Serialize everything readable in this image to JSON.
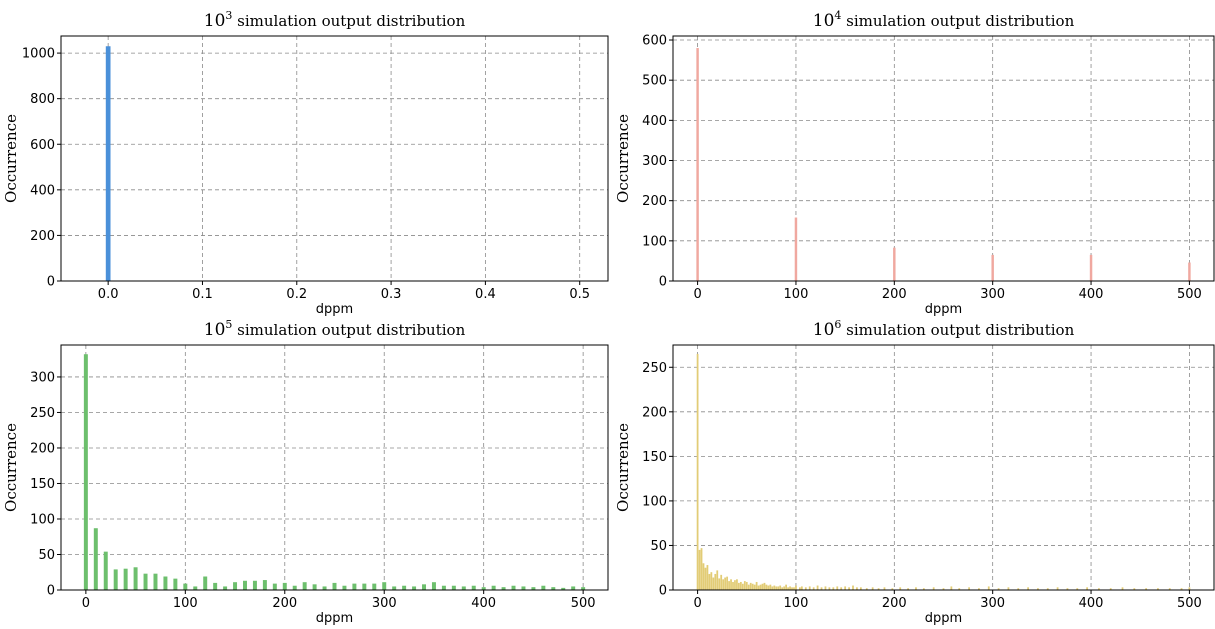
{
  "chart_data": [
    {
      "type": "bar",
      "title_base": "10",
      "title_exp": "3",
      "title_text": "simulation output distribution",
      "xlabel": "dppm",
      "ylabel": "Occurrence",
      "color": "#4a90d9",
      "xlim": [
        -0.05,
        0.53
      ],
      "ylim": [
        0,
        1075
      ],
      "xticks": [
        0.0,
        0.1,
        0.2,
        0.3,
        0.4,
        0.5
      ],
      "xtick_labels": [
        "0.0",
        "0.1",
        "0.2",
        "0.3",
        "0.4",
        "0.5"
      ],
      "yticks": [
        0,
        200,
        400,
        600,
        800,
        1000
      ],
      "ytick_labels": [
        "0",
        "200",
        "400",
        "600",
        "800",
        "1000"
      ],
      "bar_width": 0.005,
      "grid": true,
      "bars": [
        {
          "x": 0.0,
          "y": 1030
        }
      ]
    },
    {
      "type": "bar",
      "title_base": "10",
      "title_exp": "4",
      "title_text": "simulation output distribution",
      "xlabel": "dppm",
      "ylabel": "Occurrence",
      "color": "#f0a8a0",
      "xlim": [
        -25,
        525
      ],
      "ylim": [
        0,
        610
      ],
      "xticks": [
        0,
        100,
        200,
        300,
        400,
        500
      ],
      "xtick_labels": [
        "0",
        "100",
        "200",
        "300",
        "400",
        "500"
      ],
      "yticks": [
        0,
        100,
        200,
        300,
        400,
        500,
        600
      ],
      "ytick_labels": [
        "0",
        "100",
        "200",
        "300",
        "400",
        "500",
        "600"
      ],
      "bar_width": 2.5,
      "grid": true,
      "bars": [
        {
          "x": 0,
          "y": 580
        },
        {
          "x": 100,
          "y": 158
        },
        {
          "x": 200,
          "y": 83
        },
        {
          "x": 300,
          "y": 65
        },
        {
          "x": 400,
          "y": 65
        },
        {
          "x": 500,
          "y": 46
        }
      ]
    },
    {
      "type": "bar",
      "title_base": "10",
      "title_exp": "5",
      "title_text": "simulation output distribution",
      "xlabel": "dppm",
      "ylabel": "Occurrence",
      "color": "#6dbf6d",
      "xlim": [
        -25,
        525
      ],
      "ylim": [
        0,
        345
      ],
      "xticks": [
        0,
        100,
        200,
        300,
        400,
        500
      ],
      "xtick_labels": [
        "0",
        "100",
        "200",
        "300",
        "400",
        "500"
      ],
      "yticks": [
        0,
        50,
        100,
        150,
        200,
        250,
        300
      ],
      "ytick_labels": [
        "0",
        "50",
        "100",
        "150",
        "200",
        "250",
        "300"
      ],
      "bar_width": 4,
      "grid": true,
      "bars": [
        {
          "x": 0,
          "y": 332
        },
        {
          "x": 10,
          "y": 87
        },
        {
          "x": 20,
          "y": 54
        },
        {
          "x": 30,
          "y": 29
        },
        {
          "x": 40,
          "y": 30
        },
        {
          "x": 50,
          "y": 32
        },
        {
          "x": 60,
          "y": 23
        },
        {
          "x": 70,
          "y": 23
        },
        {
          "x": 80,
          "y": 19
        },
        {
          "x": 90,
          "y": 16
        },
        {
          "x": 100,
          "y": 9
        },
        {
          "x": 110,
          "y": 5
        },
        {
          "x": 120,
          "y": 19
        },
        {
          "x": 130,
          "y": 10
        },
        {
          "x": 140,
          "y": 5
        },
        {
          "x": 150,
          "y": 11
        },
        {
          "x": 160,
          "y": 13
        },
        {
          "x": 170,
          "y": 13
        },
        {
          "x": 180,
          "y": 14
        },
        {
          "x": 190,
          "y": 9
        },
        {
          "x": 200,
          "y": 10
        },
        {
          "x": 210,
          "y": 6
        },
        {
          "x": 220,
          "y": 11
        },
        {
          "x": 230,
          "y": 8
        },
        {
          "x": 240,
          "y": 5
        },
        {
          "x": 250,
          "y": 10
        },
        {
          "x": 260,
          "y": 6
        },
        {
          "x": 270,
          "y": 9
        },
        {
          "x": 280,
          "y": 9
        },
        {
          "x": 290,
          "y": 9
        },
        {
          "x": 300,
          "y": 11
        },
        {
          "x": 310,
          "y": 5
        },
        {
          "x": 320,
          "y": 6
        },
        {
          "x": 330,
          "y": 5
        },
        {
          "x": 340,
          "y": 8
        },
        {
          "x": 350,
          "y": 11
        },
        {
          "x": 360,
          "y": 6
        },
        {
          "x": 370,
          "y": 6
        },
        {
          "x": 380,
          "y": 5
        },
        {
          "x": 390,
          "y": 6
        },
        {
          "x": 400,
          "y": 4
        },
        {
          "x": 410,
          "y": 6
        },
        {
          "x": 420,
          "y": 4
        },
        {
          "x": 430,
          "y": 6
        },
        {
          "x": 440,
          "y": 5
        },
        {
          "x": 450,
          "y": 4
        },
        {
          "x": 460,
          "y": 6
        },
        {
          "x": 470,
          "y": 4
        },
        {
          "x": 480,
          "y": 3
        },
        {
          "x": 490,
          "y": 5
        },
        {
          "x": 500,
          "y": 4
        }
      ]
    },
    {
      "type": "bar",
      "title_base": "10",
      "title_exp": "6",
      "title_text": "simulation output distribution",
      "xlabel": "dppm",
      "ylabel": "Occurrence",
      "color": "#e2cc76",
      "xlim": [
        -25,
        525
      ],
      "ylim": [
        0,
        275
      ],
      "xticks": [
        0,
        100,
        200,
        300,
        400,
        500
      ],
      "xtick_labels": [
        "0",
        "100",
        "200",
        "300",
        "400",
        "500"
      ],
      "yticks": [
        0,
        50,
        100,
        150,
        200,
        250
      ],
      "ytick_labels": [
        "0",
        "50",
        "100",
        "150",
        "200",
        "250"
      ],
      "bar_width": 1.8,
      "grid": true,
      "bars": [
        {
          "x": 0,
          "y": 265
        },
        {
          "x": 2,
          "y": 45
        },
        {
          "x": 4,
          "y": 47
        },
        {
          "x": 6,
          "y": 30
        },
        {
          "x": 8,
          "y": 25
        },
        {
          "x": 10,
          "y": 28
        },
        {
          "x": 12,
          "y": 18
        },
        {
          "x": 14,
          "y": 20
        },
        {
          "x": 16,
          "y": 14
        },
        {
          "x": 18,
          "y": 18
        },
        {
          "x": 20,
          "y": 22
        },
        {
          "x": 22,
          "y": 13
        },
        {
          "x": 24,
          "y": 17
        },
        {
          "x": 26,
          "y": 12
        },
        {
          "x": 28,
          "y": 14
        },
        {
          "x": 30,
          "y": 15
        },
        {
          "x": 32,
          "y": 10
        },
        {
          "x": 34,
          "y": 12
        },
        {
          "x": 36,
          "y": 9
        },
        {
          "x": 38,
          "y": 11
        },
        {
          "x": 40,
          "y": 12
        },
        {
          "x": 42,
          "y": 8
        },
        {
          "x": 44,
          "y": 9
        },
        {
          "x": 46,
          "y": 7
        },
        {
          "x": 48,
          "y": 10
        },
        {
          "x": 50,
          "y": 9
        },
        {
          "x": 52,
          "y": 6
        },
        {
          "x": 54,
          "y": 8
        },
        {
          "x": 56,
          "y": 7
        },
        {
          "x": 58,
          "y": 6
        },
        {
          "x": 60,
          "y": 9
        },
        {
          "x": 62,
          "y": 5
        },
        {
          "x": 64,
          "y": 6
        },
        {
          "x": 66,
          "y": 7
        },
        {
          "x": 68,
          "y": 8
        },
        {
          "x": 70,
          "y": 6
        },
        {
          "x": 72,
          "y": 5
        },
        {
          "x": 74,
          "y": 6
        },
        {
          "x": 76,
          "y": 4
        },
        {
          "x": 78,
          "y": 5
        },
        {
          "x": 80,
          "y": 4
        },
        {
          "x": 82,
          "y": 4
        },
        {
          "x": 84,
          "y": 5
        },
        {
          "x": 86,
          "y": 3
        },
        {
          "x": 88,
          "y": 4
        },
        {
          "x": 90,
          "y": 6
        },
        {
          "x": 92,
          "y": 3
        },
        {
          "x": 94,
          "y": 4
        },
        {
          "x": 96,
          "y": 3
        },
        {
          "x": 98,
          "y": 3
        },
        {
          "x": 100,
          "y": 5
        },
        {
          "x": 104,
          "y": 3
        },
        {
          "x": 106,
          "y": 4
        },
        {
          "x": 110,
          "y": 3
        },
        {
          "x": 114,
          "y": 4
        },
        {
          "x": 118,
          "y": 3
        },
        {
          "x": 122,
          "y": 5
        },
        {
          "x": 126,
          "y": 3
        },
        {
          "x": 130,
          "y": 4
        },
        {
          "x": 134,
          "y": 3
        },
        {
          "x": 138,
          "y": 3
        },
        {
          "x": 142,
          "y": 4
        },
        {
          "x": 146,
          "y": 3
        },
        {
          "x": 150,
          "y": 4
        },
        {
          "x": 154,
          "y": 3
        },
        {
          "x": 158,
          "y": 5
        },
        {
          "x": 162,
          "y": 3
        },
        {
          "x": 166,
          "y": 3
        },
        {
          "x": 172,
          "y": 2
        },
        {
          "x": 178,
          "y": 3
        },
        {
          "x": 184,
          "y": 2
        },
        {
          "x": 190,
          "y": 3
        },
        {
          "x": 198,
          "y": 2
        },
        {
          "x": 206,
          "y": 3
        },
        {
          "x": 214,
          "y": 2
        },
        {
          "x": 222,
          "y": 3
        },
        {
          "x": 230,
          "y": 2
        },
        {
          "x": 240,
          "y": 3
        },
        {
          "x": 250,
          "y": 2
        },
        {
          "x": 258,
          "y": 4
        },
        {
          "x": 266,
          "y": 2
        },
        {
          "x": 276,
          "y": 3
        },
        {
          "x": 286,
          "y": 2
        },
        {
          "x": 296,
          "y": 4
        },
        {
          "x": 306,
          "y": 2
        },
        {
          "x": 316,
          "y": 3
        },
        {
          "x": 326,
          "y": 2
        },
        {
          "x": 336,
          "y": 3
        },
        {
          "x": 346,
          "y": 2
        },
        {
          "x": 356,
          "y": 2
        },
        {
          "x": 366,
          "y": 3
        },
        {
          "x": 376,
          "y": 2
        },
        {
          "x": 386,
          "y": 2
        },
        {
          "x": 396,
          "y": 3
        },
        {
          "x": 408,
          "y": 2
        },
        {
          "x": 420,
          "y": 2
        },
        {
          "x": 432,
          "y": 3
        },
        {
          "x": 444,
          "y": 2
        },
        {
          "x": 456,
          "y": 2
        },
        {
          "x": 468,
          "y": 2
        },
        {
          "x": 480,
          "y": 2
        },
        {
          "x": 492,
          "y": 2
        },
        {
          "x": 500,
          "y": 3
        }
      ]
    }
  ]
}
